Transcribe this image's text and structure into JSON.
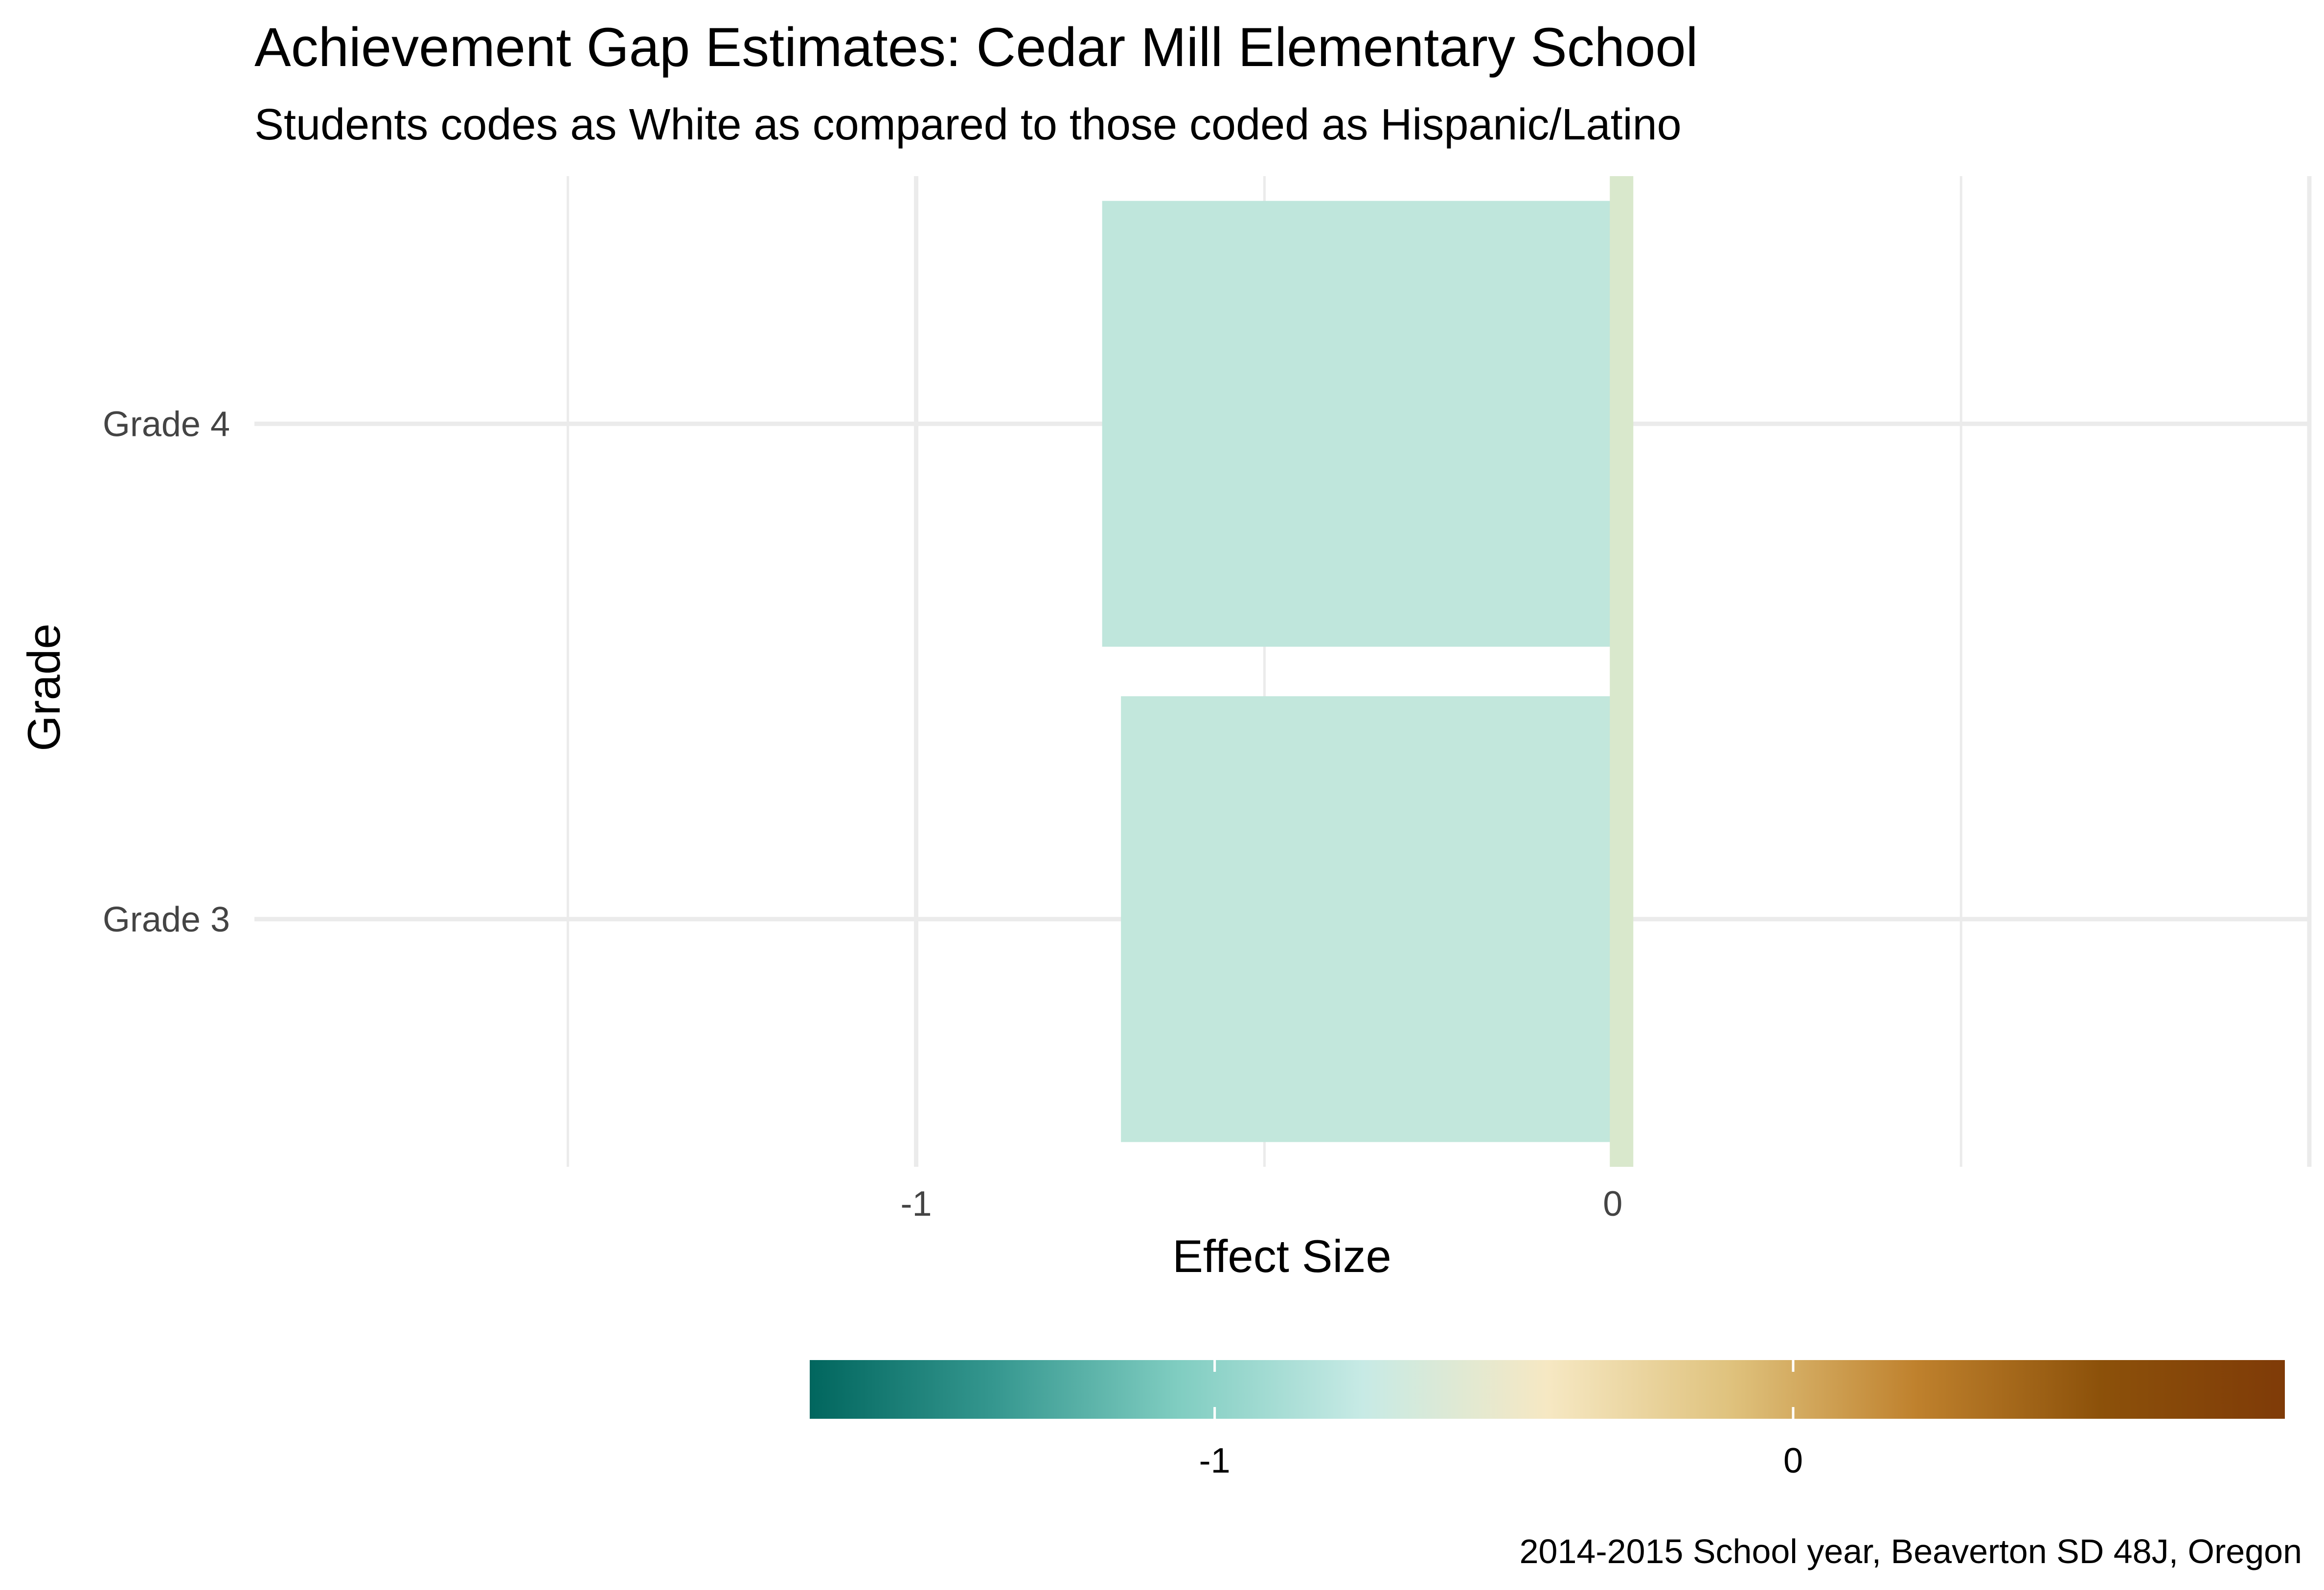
{
  "chart_data": {
    "type": "bar",
    "orientation": "horizontal",
    "title": "Achievement Gap Estimates: Cedar Mill Elementary School",
    "subtitle": "Students codes as White as compared to those coded as Hispanic/Latino",
    "xlabel": "Effect Size",
    "ylabel": "Grade",
    "caption": "2014-2015 School year, Beaverton SD 48J, Oregon",
    "categories": [
      "Grade 4",
      "Grade 3"
    ],
    "values": [
      -0.733,
      -0.706
    ],
    "bar_colors": [
      "#bfe6dc",
      "#c2e7dc"
    ],
    "zero_marker_color": "#d9e8cc",
    "xlim": [
      -1.95,
      1.0
    ],
    "x_ticks": [
      -1,
      0
    ],
    "x_tick_labels": [
      "-1",
      "0"
    ],
    "grid": true,
    "legend": {
      "type": "colorbar",
      "position": "bottom",
      "range": [
        -1.7,
        0.85
      ],
      "ticks": [
        -1,
        0
      ],
      "tick_labels": [
        "-1",
        "0"
      ],
      "stops": [
        "#01665e",
        "#35978f",
        "#80cdc1",
        "#c7eae5",
        "#f6e8c3",
        "#dfc27d",
        "#bf812d",
        "#8c510a",
        "#7f3b08"
      ]
    }
  }
}
